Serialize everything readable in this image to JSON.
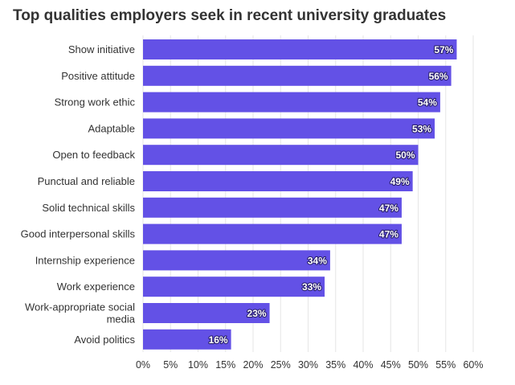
{
  "chart_data": {
    "type": "bar",
    "orientation": "horizontal",
    "title": "Top qualities employers seek in recent university graduates",
    "xlabel": "",
    "ylabel": "",
    "xlim": [
      0,
      60
    ],
    "ticks": [
      0,
      5,
      10,
      15,
      20,
      25,
      30,
      35,
      40,
      45,
      50,
      55,
      60
    ],
    "tick_labels": [
      "0%",
      "5%",
      "10%",
      "15%",
      "20%",
      "25%",
      "30%",
      "35%",
      "40%",
      "45%",
      "50%",
      "55%",
      "60%"
    ],
    "grid": true,
    "bar_color": "#6351e6",
    "categories": [
      "Show initiative",
      "Positive attitude",
      "Strong work ethic",
      "Adaptable",
      "Open to feedback",
      "Punctual and reliable",
      "Solid technical skills",
      "Good interpersonal skills",
      "Internship experience",
      "Work experience",
      "Work-appropriate social media",
      "Avoid politics"
    ],
    "category_lines": [
      [
        "Show initiative"
      ],
      [
        "Positive attitude"
      ],
      [
        "Strong work ethic"
      ],
      [
        "Adaptable"
      ],
      [
        "Open to feedback"
      ],
      [
        "Punctual and reliable"
      ],
      [
        "Solid technical skills"
      ],
      [
        "Good interpersonal skills"
      ],
      [
        "Internship experience"
      ],
      [
        "Work experience"
      ],
      [
        "Work-appropriate social",
        "media"
      ],
      [
        "Avoid politics"
      ]
    ],
    "values": [
      57,
      56,
      54,
      53,
      50,
      49,
      47,
      47,
      34,
      33,
      23,
      16
    ],
    "value_labels": [
      "57%",
      "56%",
      "54%",
      "53%",
      "50%",
      "49%",
      "47%",
      "47%",
      "34%",
      "33%",
      "23%",
      "16%"
    ]
  }
}
